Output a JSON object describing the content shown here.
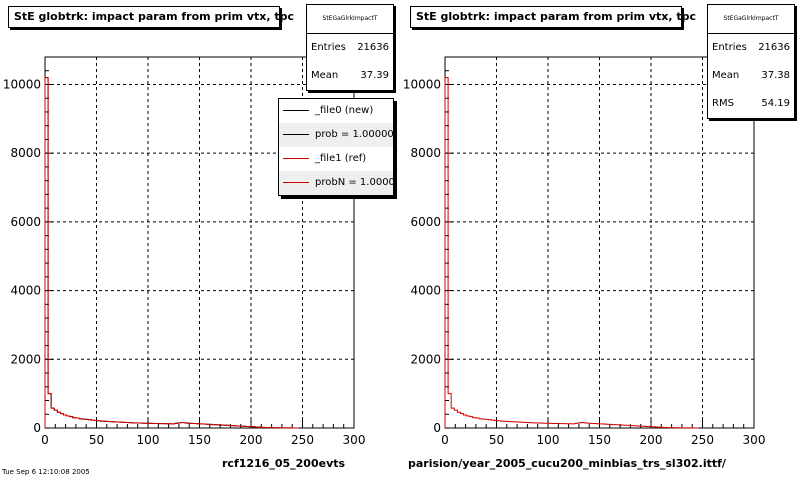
{
  "panels": [
    {
      "id": "left",
      "title": "StE globtrk: impact param from prim vtx, tpc",
      "stats": {
        "name": "StEGaGlrkImpactT",
        "rows": [
          {
            "label": "Entries",
            "value": "21636"
          },
          {
            "label": "Mean",
            "value": "37.39"
          }
        ]
      },
      "legend": [
        {
          "label": "_file0 (new)",
          "color": "#000000"
        },
        {
          "label": "prob = 1.000000",
          "color": "#000000"
        },
        {
          "label": "_file1 (ref)",
          "color": "#d00000"
        },
        {
          "label": "probN = 1.000000",
          "color": "#d00000"
        }
      ],
      "footer": "rcf1216_05_200evts"
    },
    {
      "id": "right",
      "title": "StE globtrk: impact param from prim vtx, tpc",
      "stats": {
        "name": "StEGaGlrkImpactT",
        "rows": [
          {
            "label": "Entries",
            "value": "21636"
          },
          {
            "label": "Mean",
            "value": "37.38"
          },
          {
            "label": "RMS",
            "value": "54.19"
          }
        ]
      },
      "footer": "parision/year_2005_cucu200_minbias_trs_sl302.ittf/"
    }
  ],
  "bottom_left_text": "Tue Sep 6 12:10:08 2005",
  "chart_data": [
    {
      "type": "line",
      "title": "StE globtrk: impact param from prim vtx, tpc",
      "xlim": [
        0,
        300
      ],
      "ylim": [
        0,
        10800
      ],
      "xticks": [
        0,
        50,
        100,
        150,
        200,
        250,
        300
      ],
      "yticks": [
        0,
        2000,
        4000,
        6000,
        8000,
        10000
      ],
      "grid": true,
      "bin_width": 3,
      "series": [
        {
          "name": "_file0 (new)",
          "color": "#000000",
          "values": [
            10200,
            1000,
            580,
            520,
            460,
            420,
            380,
            350,
            330,
            300,
            290,
            270,
            260,
            250,
            240,
            230,
            220,
            210,
            200,
            195,
            190,
            185,
            180,
            175,
            170,
            165,
            160,
            155,
            150,
            148,
            145,
            142,
            140,
            138,
            135,
            132,
            130,
            128,
            126,
            124,
            122,
            120,
            135,
            150,
            160,
            150,
            140,
            135,
            130,
            125,
            120,
            115,
            110,
            105,
            100,
            95,
            90,
            85,
            80,
            75,
            70,
            65,
            60,
            55,
            50,
            45,
            40,
            35,
            30,
            25,
            20,
            15,
            12,
            10,
            8,
            6,
            5,
            4,
            3,
            2,
            1,
            0
          ]
        },
        {
          "name": "_file1 (ref)",
          "color": "#d00000",
          "values": [
            10200,
            1000,
            580,
            520,
            460,
            420,
            380,
            350,
            330,
            300,
            290,
            270,
            260,
            250,
            240,
            230,
            220,
            210,
            200,
            195,
            190,
            185,
            180,
            175,
            170,
            165,
            160,
            155,
            150,
            148,
            145,
            142,
            140,
            138,
            135,
            132,
            130,
            128,
            126,
            124,
            122,
            120,
            135,
            150,
            160,
            150,
            140,
            135,
            130,
            125,
            120,
            115,
            110,
            105,
            100,
            95,
            90,
            85,
            80,
            75,
            70,
            65,
            60,
            55,
            50,
            45,
            40,
            35,
            30,
            25,
            20,
            15,
            12,
            10,
            8,
            6,
            5,
            4,
            3,
            2,
            1,
            0
          ]
        }
      ]
    },
    {
      "type": "line",
      "title": "StE globtrk: impact param from prim vtx, tpc",
      "xlim": [
        0,
        300
      ],
      "ylim": [
        0,
        10800
      ],
      "xticks": [
        0,
        50,
        100,
        150,
        200,
        250,
        300
      ],
      "yticks": [
        0,
        2000,
        4000,
        6000,
        8000,
        10000
      ],
      "grid": true,
      "bin_width": 3,
      "series": [
        {
          "name": "",
          "color": "#d00000",
          "values": [
            10200,
            1000,
            580,
            520,
            460,
            420,
            380,
            350,
            330,
            300,
            290,
            270,
            260,
            250,
            240,
            230,
            220,
            210,
            200,
            195,
            190,
            185,
            180,
            175,
            170,
            165,
            160,
            155,
            150,
            148,
            145,
            142,
            140,
            138,
            135,
            132,
            130,
            128,
            126,
            124,
            122,
            120,
            135,
            150,
            160,
            150,
            140,
            135,
            130,
            125,
            120,
            115,
            110,
            105,
            100,
            95,
            90,
            85,
            80,
            75,
            70,
            65,
            60,
            55,
            50,
            45,
            40,
            35,
            30,
            25,
            20,
            15,
            12,
            10,
            8,
            6,
            5,
            4,
            3,
            2,
            1,
            0
          ]
        }
      ]
    }
  ]
}
